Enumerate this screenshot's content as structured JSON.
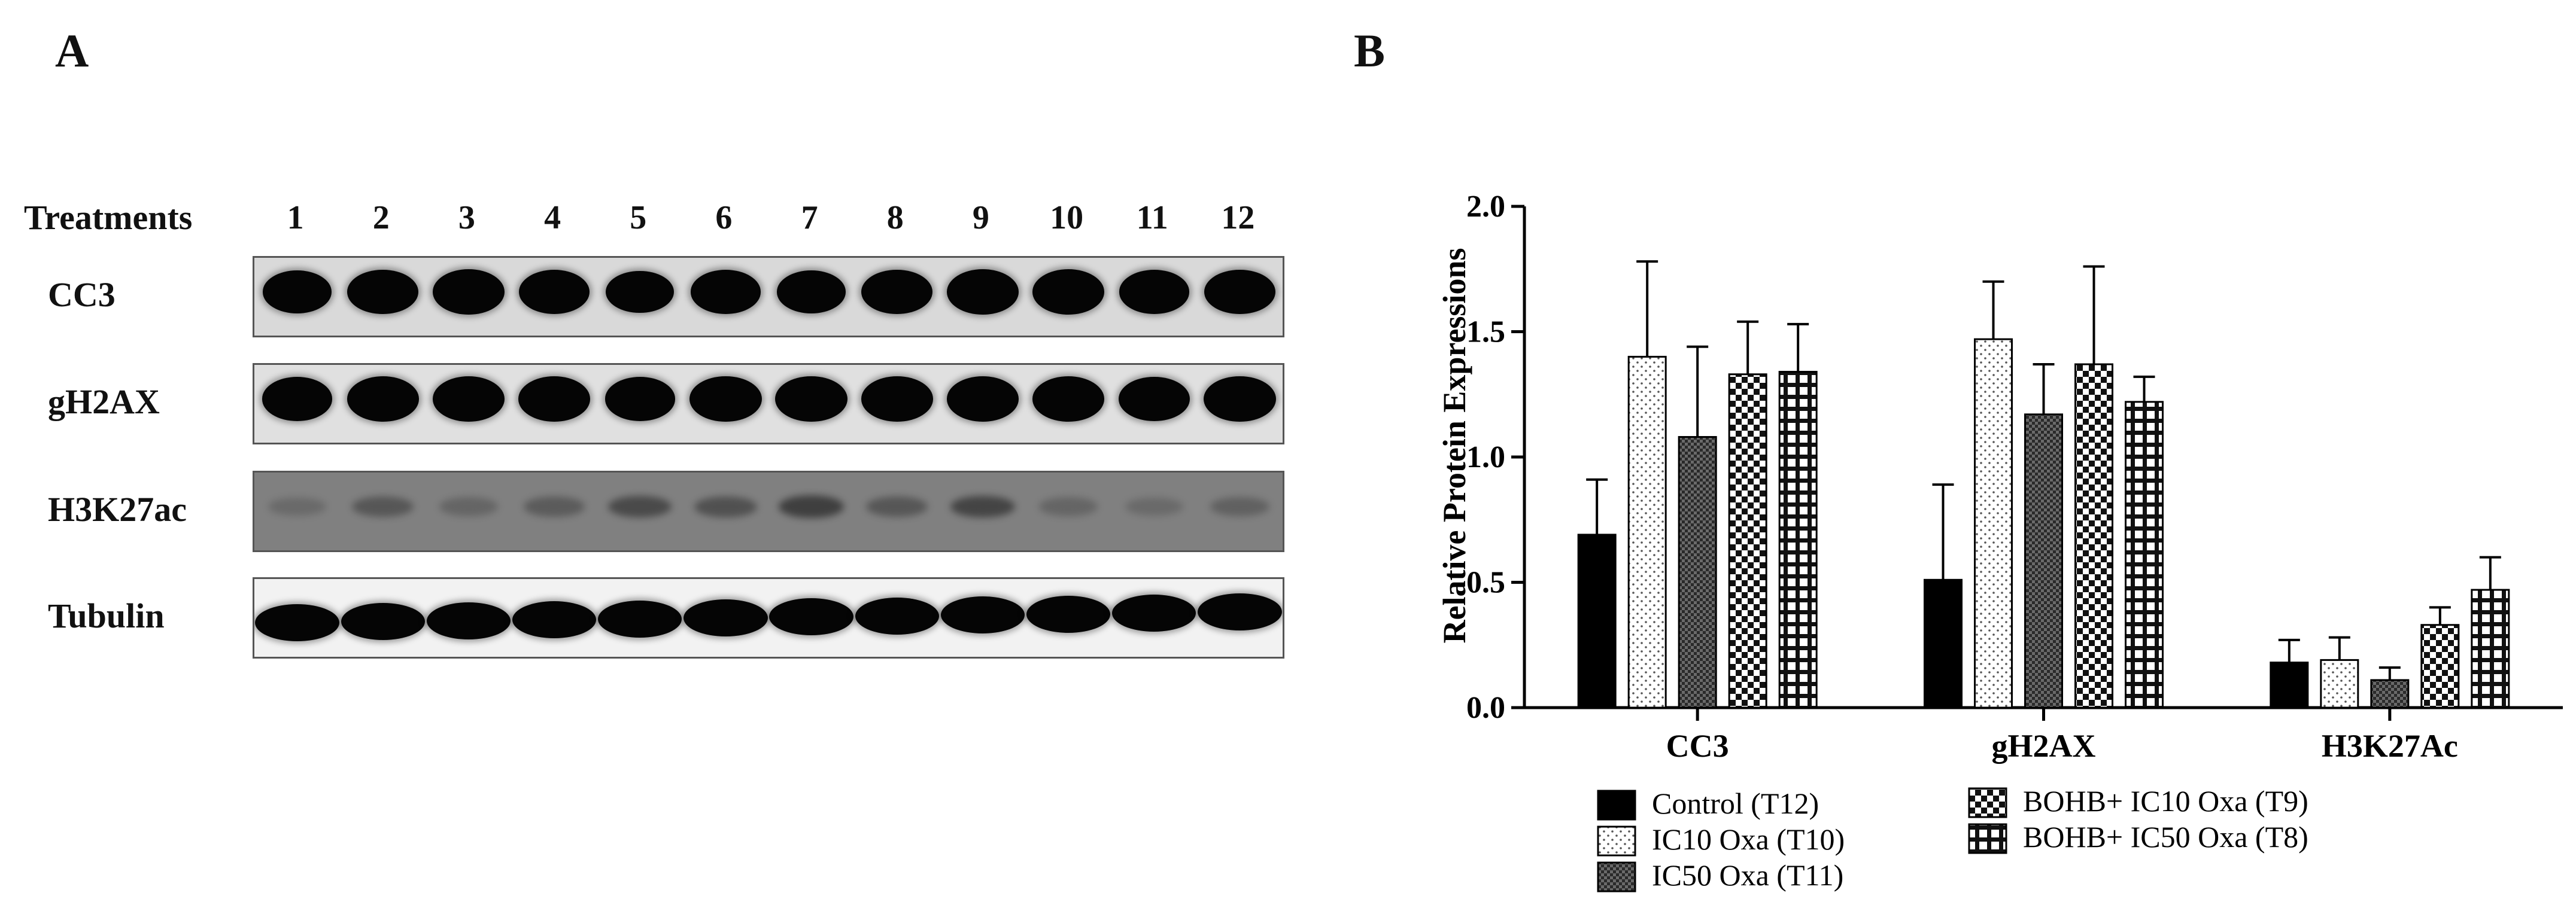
{
  "panels": {
    "a": "A",
    "b": "B"
  },
  "blot": {
    "header_label": "Treatments",
    "lanes": [
      "1",
      "2",
      "3",
      "4",
      "5",
      "6",
      "7",
      "8",
      "9",
      "10",
      "11",
      "12"
    ],
    "rows": [
      {
        "label": "CC3",
        "bg": "#d9d9d9",
        "intensity": [
          0.85,
          0.95,
          1.0,
          0.95,
          0.8,
          0.9,
          0.85,
          0.95,
          1.0,
          1.0,
          0.9,
          0.95
        ]
      },
      {
        "label": "gH2AX",
        "bg": "#e0e0e0",
        "intensity": [
          0.9,
          1.0,
          1.0,
          1.0,
          0.9,
          1.0,
          1.0,
          1.0,
          1.0,
          1.0,
          0.95,
          1.0
        ]
      },
      {
        "label": "H3K27ac",
        "bg": "#808080",
        "intensity": [
          0.25,
          0.45,
          0.3,
          0.4,
          0.55,
          0.5,
          0.65,
          0.45,
          0.6,
          0.3,
          0.25,
          0.35
        ]
      },
      {
        "label": "Tubulin",
        "bg": "#f2f2f2",
        "intensity": [
          1.0,
          1.0,
          1.0,
          1.0,
          1.0,
          1.0,
          1.0,
          0.95,
          1.0,
          1.0,
          1.0,
          1.0
        ]
      }
    ]
  },
  "chart_data": {
    "type": "bar",
    "ylabel": "Relative Protein Expressions",
    "xlabel": "",
    "ylim": [
      0,
      2.0
    ],
    "yticks": [
      "0.0",
      "0.5",
      "1.0",
      "1.5",
      "2.0"
    ],
    "categories": [
      "CC3",
      "gH2AX",
      "H3K27Ac"
    ],
    "series": [
      {
        "name": "Control (T12)",
        "pattern": "solid",
        "values": [
          0.69,
          0.51,
          0.18
        ],
        "errors": [
          0.22,
          0.38,
          0.09
        ]
      },
      {
        "name": "IC10 Oxa (T10)",
        "pattern": "dots",
        "values": [
          1.4,
          1.47,
          0.19
        ],
        "errors": [
          0.38,
          0.23,
          0.09
        ]
      },
      {
        "name": "IC50 Oxa (T11)",
        "pattern": "dense",
        "values": [
          1.08,
          1.17,
          0.11
        ],
        "errors": [
          0.36,
          0.2,
          0.05
        ]
      },
      {
        "name": "BOHB+ IC10 Oxa (T9)",
        "pattern": "checker",
        "values": [
          1.33,
          1.37,
          0.33
        ],
        "errors": [
          0.21,
          0.39,
          0.07
        ]
      },
      {
        "name": "BOHB+ IC50 Oxa (T8)",
        "pattern": "grid",
        "values": [
          1.34,
          1.22,
          0.47
        ],
        "errors": [
          0.19,
          0.1,
          0.13
        ]
      }
    ],
    "legend_position": "bottom"
  }
}
